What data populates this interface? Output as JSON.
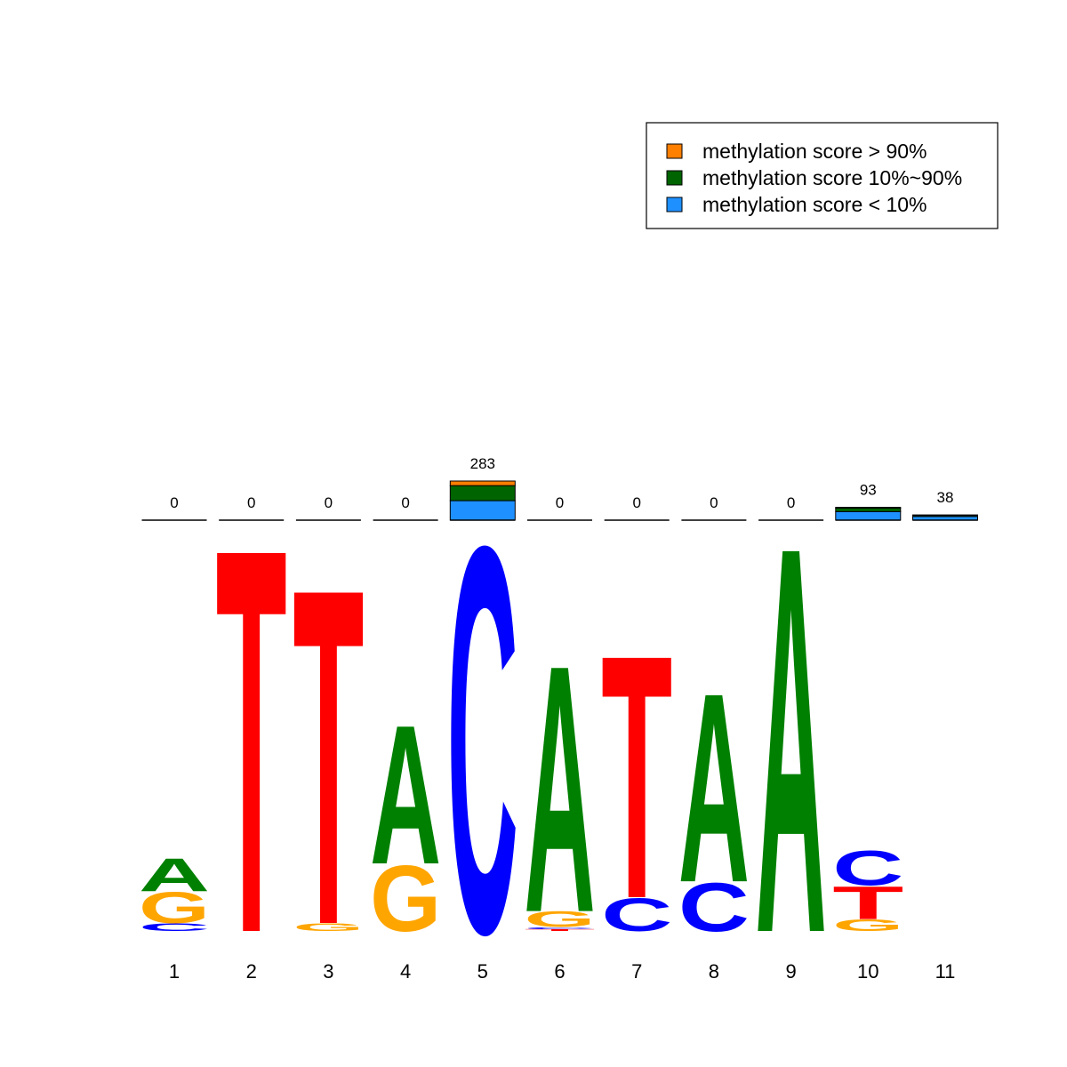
{
  "chart_data": {
    "type": "logo",
    "categories": [
      "1",
      "2",
      "3",
      "4",
      "5",
      "6",
      "7",
      "8",
      "9",
      "10",
      "11"
    ],
    "counts": [
      0,
      0,
      0,
      0,
      283,
      0,
      0,
      0,
      0,
      93,
      38
    ],
    "letters": [
      [
        {
          "letter": "C",
          "color": "#0000ff",
          "height": 0.04
        },
        {
          "letter": "G",
          "color": "#ffa500",
          "height": 0.16
        },
        {
          "letter": "A",
          "color": "#008000",
          "height": 0.17
        }
      ],
      [
        {
          "letter": "T",
          "color": "#ff0000",
          "height": 1.99
        }
      ],
      [
        {
          "letter": "G",
          "color": "#ffa500",
          "height": 0.04
        },
        {
          "letter": "T",
          "color": "#ff0000",
          "height": 1.74
        }
      ],
      [
        {
          "letter": "G",
          "color": "#ffa500",
          "height": 0.34
        },
        {
          "letter": "A",
          "color": "#008000",
          "height": 0.72
        }
      ],
      [
        {
          "letter": "C",
          "color": "#0000ff",
          "height": 2.0
        }
      ],
      [
        {
          "letter": "T",
          "color": "#ff0000",
          "height": 0.01
        },
        {
          "letter": "C",
          "color": "#0000ff",
          "height": 0.01
        },
        {
          "letter": "G",
          "color": "#ffa500",
          "height": 0.08
        },
        {
          "letter": "A",
          "color": "#008000",
          "height": 1.28
        }
      ],
      [
        {
          "letter": "C",
          "color": "#0000ff",
          "height": 0.17
        },
        {
          "letter": "T",
          "color": "#ff0000",
          "height": 1.26
        }
      ],
      [
        {
          "letter": "C",
          "color": "#0000ff",
          "height": 0.25
        },
        {
          "letter": "A",
          "color": "#008000",
          "height": 0.98
        }
      ],
      [
        {
          "letter": "A",
          "color": "#008000",
          "height": 2.0
        }
      ],
      [
        {
          "letter": "G",
          "color": "#ffa500",
          "height": 0.06
        },
        {
          "letter": "T",
          "color": "#ff0000",
          "height": 0.17
        },
        {
          "letter": "C",
          "color": "#0000ff",
          "height": 0.18
        }
      ],
      []
    ],
    "series": [
      {
        "name": "methylation score < 10%",
        "color": "#1e90ff",
        "values": [
          0,
          0,
          0,
          0,
          141,
          0,
          0,
          0,
          0,
          62,
          27
        ]
      },
      {
        "name": "methylation score 10%~90%",
        "color": "#006400",
        "values": [
          0,
          0,
          0,
          0,
          109,
          0,
          0,
          0,
          0,
          26,
          8
        ]
      },
      {
        "name": "methylation score > 90%",
        "color": "#ff7f00",
        "values": [
          0,
          0,
          0,
          0,
          33,
          0,
          0,
          0,
          0,
          5,
          3
        ]
      }
    ]
  }
}
